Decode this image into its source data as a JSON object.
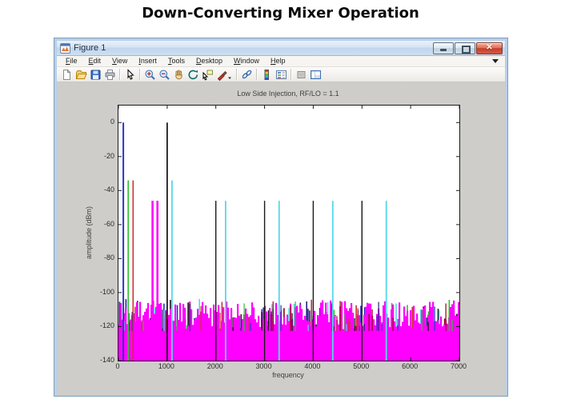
{
  "page": {
    "heading": "Down-Converting Mixer Operation"
  },
  "window": {
    "title": "Figure 1",
    "controls": [
      "minimize",
      "maximize",
      "close"
    ],
    "menu_items": [
      "File",
      "Edit",
      "View",
      "Insert",
      "Tools",
      "Desktop",
      "Window",
      "Help"
    ],
    "toolbar_groups": [
      [
        "new-file",
        "open-file",
        "save-figure",
        "print-figure"
      ],
      [
        "edit-arrow"
      ],
      [
        "zoom-in",
        "zoom-out",
        "pan",
        "rotate-3d",
        "data-cursor",
        "brush-data"
      ],
      [
        "link-plot"
      ],
      [
        "insert-colorbar",
        "insert-legend"
      ],
      [
        "hide-plot-tools",
        "show-plot-tools"
      ]
    ]
  },
  "colors": {
    "titlebar_blue": "#c8dbf0",
    "close_button_red": "#d0452f",
    "figure_background": "#cecdc9",
    "noise_magenta": "#ff00ff",
    "rf_cyan": "#55d8e8",
    "lo_black": "#000000",
    "if_blue": "#2b35c8"
  },
  "chart_data": {
    "type": "bar",
    "title": "Low Side Injection, RF/LO = 1.1",
    "xlabel": "frequency",
    "ylabel": "amplitude (dBm)",
    "xlim": [
      0,
      7000
    ],
    "ylim": [
      -140,
      10
    ],
    "x_ticks": [
      0,
      1000,
      2000,
      3000,
      4000,
      5000,
      6000,
      7000
    ],
    "y_ticks": [
      0,
      -20,
      -40,
      -60,
      -80,
      -100,
      -120,
      -140
    ],
    "grid": false,
    "legend": false,
    "spikes": [
      {
        "f": 100,
        "dbm": 0,
        "color": "#2b35c8",
        "w": 2.0
      },
      {
        "f": 200,
        "dbm": -34,
        "color": "#2fbf2f",
        "w": 1.6
      },
      {
        "f": 300,
        "dbm": -34,
        "color": "#d03030",
        "w": 1.6
      },
      {
        "f": 700,
        "dbm": -46,
        "color": "#ff00ff",
        "w": 2.6
      },
      {
        "f": 800,
        "dbm": -46,
        "color": "#ff00ff",
        "w": 2.6
      },
      {
        "f": 1000,
        "dbm": 0,
        "color": "#000000",
        "w": 1.6
      },
      {
        "f": 1100,
        "dbm": -34,
        "color": "#55d8e8",
        "w": 1.8
      },
      {
        "f": 2000,
        "dbm": -46,
        "color": "#1a1a1a",
        "w": 1.4
      },
      {
        "f": 2200,
        "dbm": -46,
        "color": "#55d8e8",
        "w": 1.8
      },
      {
        "f": 3000,
        "dbm": -46,
        "color": "#1a1a1a",
        "w": 1.4
      },
      {
        "f": 3300,
        "dbm": -46,
        "color": "#55d8e8",
        "w": 1.8
      },
      {
        "f": 4000,
        "dbm": -46,
        "color": "#1a1a1a",
        "w": 1.4
      },
      {
        "f": 4400,
        "dbm": -46,
        "color": "#55d8e8",
        "w": 1.8
      },
      {
        "f": 5000,
        "dbm": -46,
        "color": "#1a1a1a",
        "w": 1.4
      },
      {
        "f": 5500,
        "dbm": -46,
        "color": "#55d8e8",
        "w": 1.8
      }
    ],
    "noise": {
      "seed": 20117,
      "floor_dbm": -140,
      "solid_top_dbm": -122.5,
      "ragged_top_range_dbm": [
        -121.5,
        -104.5
      ],
      "magenta": "#ff00ff",
      "accent_colors": [
        "#111111",
        "#2b35c8",
        "#d03030",
        "#2fbf2f",
        "#55d8e8",
        "#8b0000",
        "#232388"
      ]
    }
  }
}
